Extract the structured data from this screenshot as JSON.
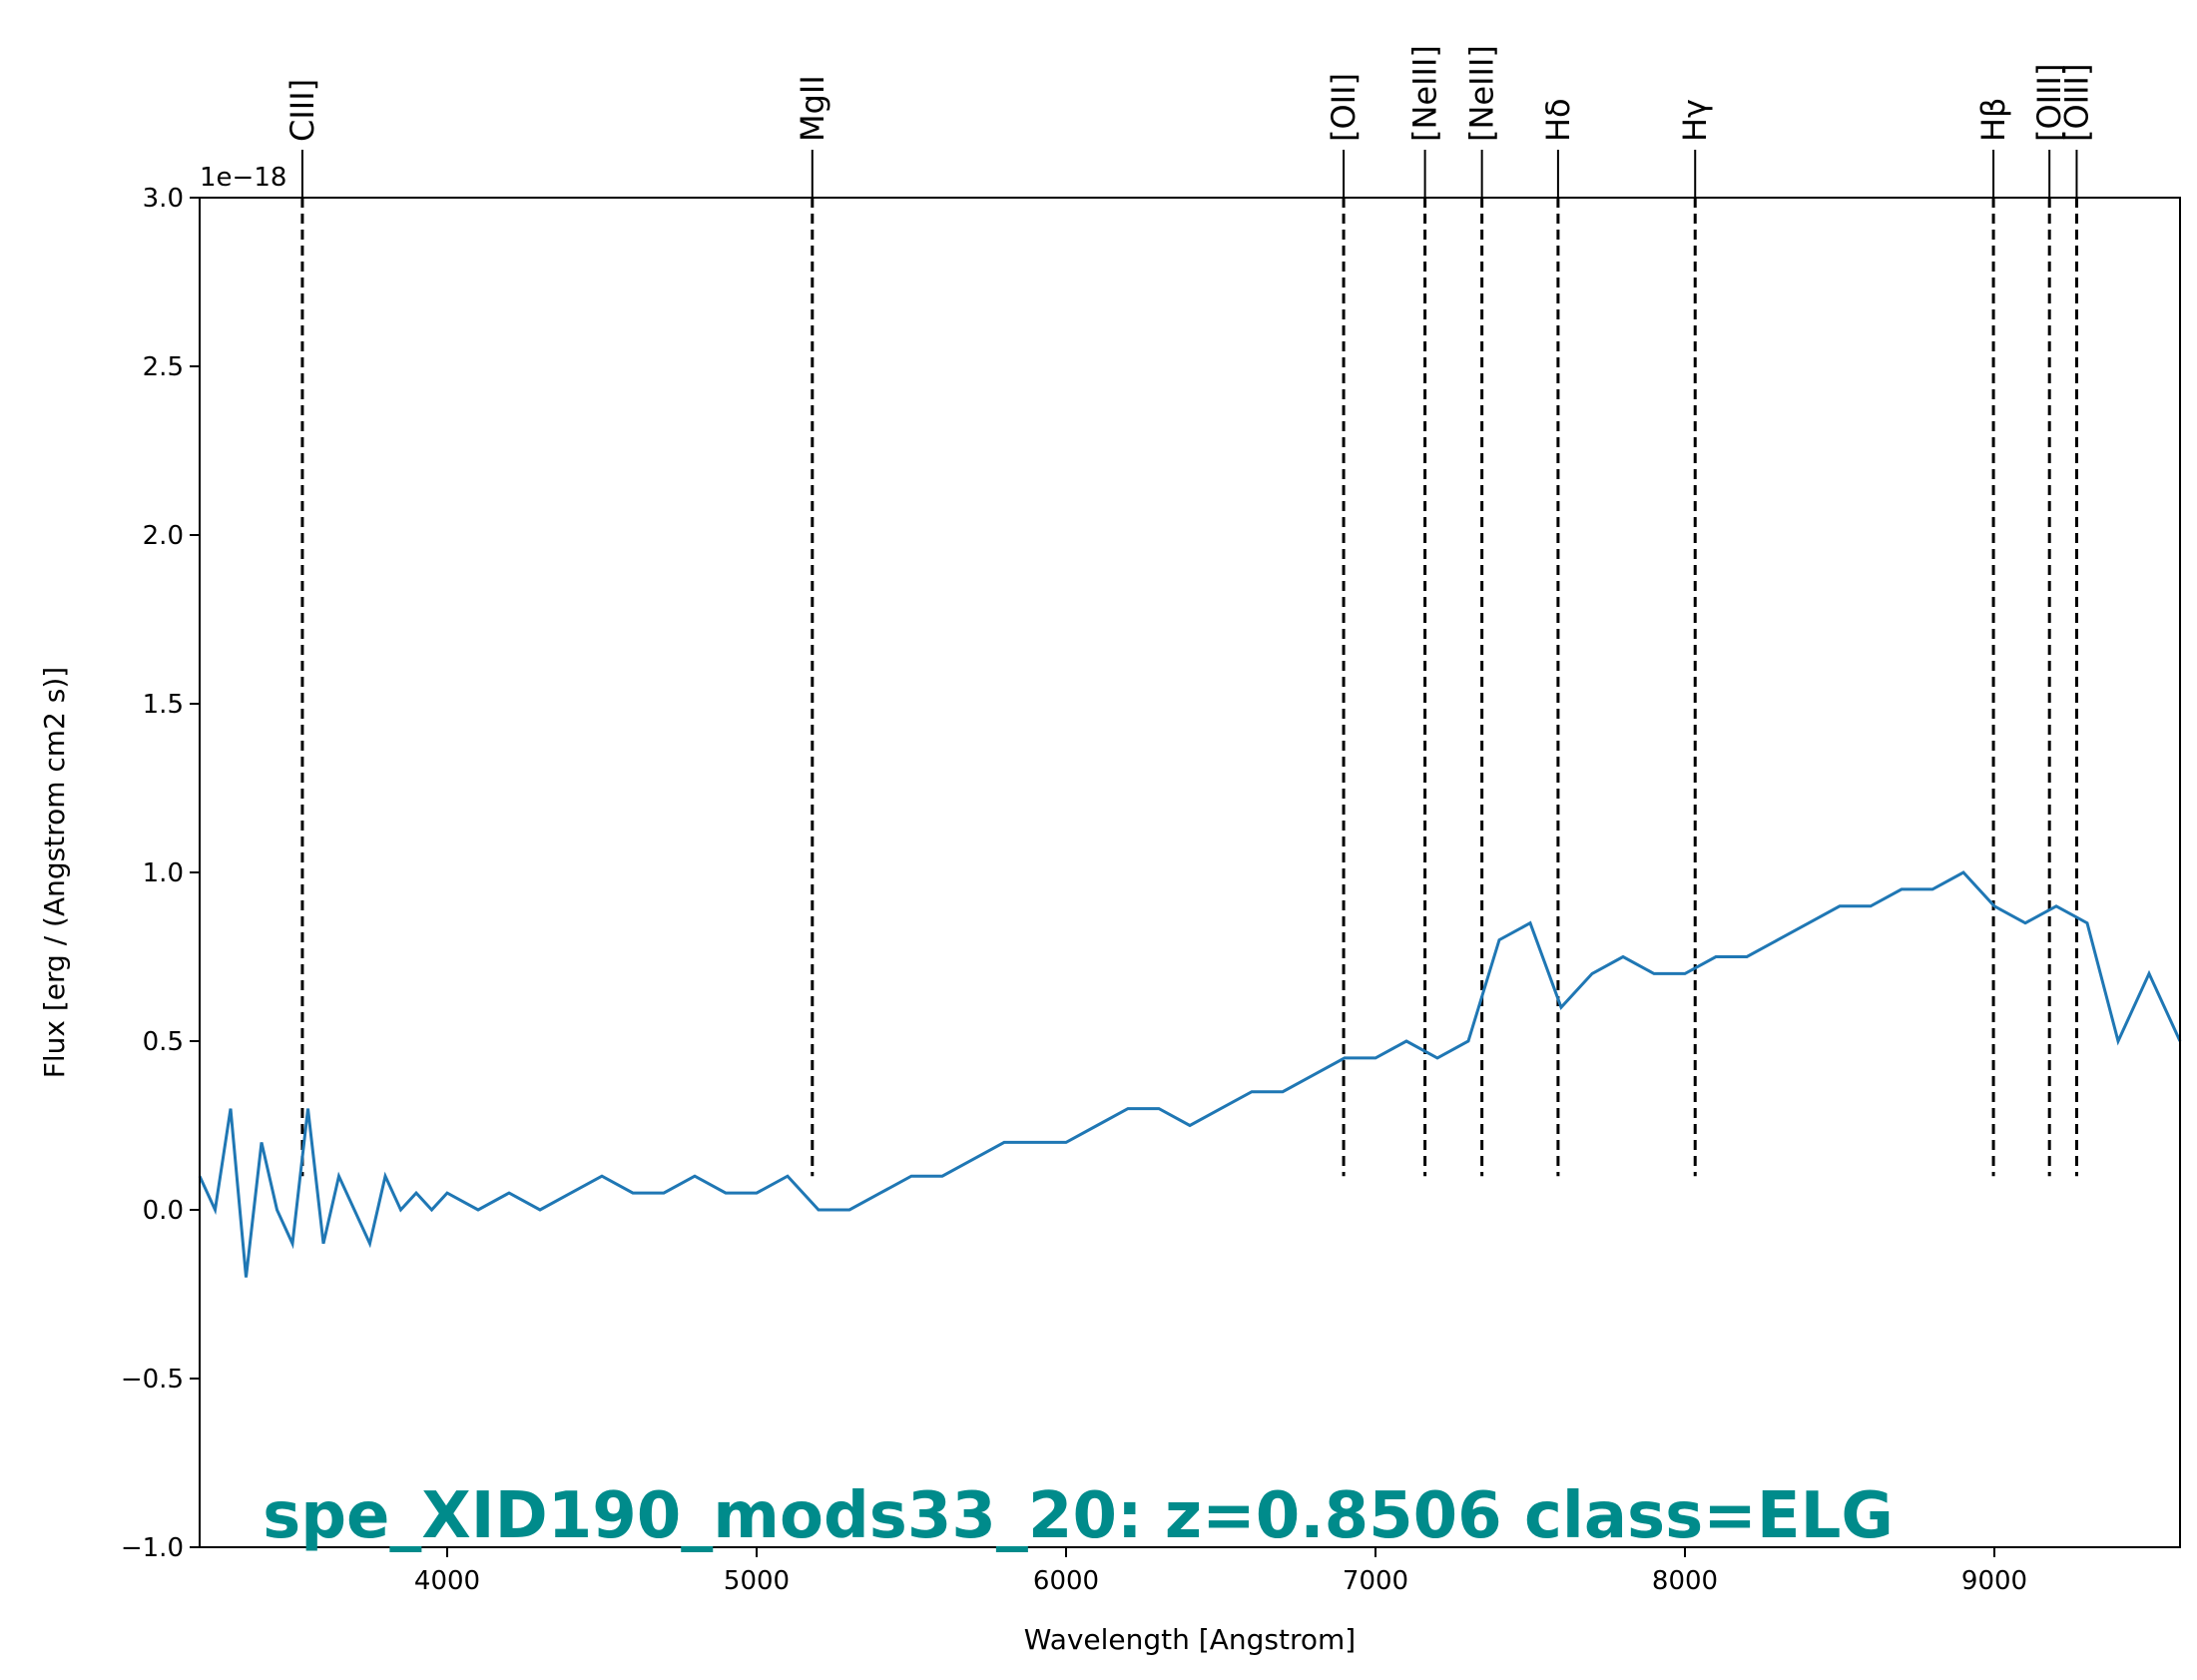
{
  "chart_data": {
    "type": "line",
    "xlabel": "Wavelength [Angstrom]",
    "ylabel": "Flux [erg / (Angstrom cm2 s)]",
    "y_offset_text": "1e−18",
    "xlim": [
      3200,
      9600
    ],
    "ylim": [
      -1.0,
      3.0
    ],
    "x_ticks": [
      4000,
      5000,
      6000,
      7000,
      8000,
      9000
    ],
    "x_tick_labels": [
      "4000",
      "5000",
      "6000",
      "7000",
      "8000",
      "9000"
    ],
    "y_ticks": [
      -1.0,
      -0.5,
      0.0,
      0.5,
      1.0,
      1.5,
      2.0,
      2.5,
      3.0
    ],
    "y_tick_labels": [
      "−1.0",
      "−0.5",
      "0.0",
      "0.5",
      "1.0",
      "1.5",
      "2.0",
      "2.5",
      "3.0"
    ],
    "grid": false,
    "series_color": "#1f77b4",
    "annotation": {
      "text": "spe_XID190_mods33_20: z=0.8506 class=ELG",
      "color": "#008b8b"
    },
    "emission_lines": [
      {
        "label": "CIII]",
        "wavelength": 3532
      },
      {
        "label": "MgII",
        "wavelength": 5180
      },
      {
        "label": "[OII]",
        "wavelength": 6897
      },
      {
        "label": "[NeIII]",
        "wavelength": 7160
      },
      {
        "label": "[NeIII]",
        "wavelength": 7344
      },
      {
        "label": "Hδ",
        "wavelength": 7590
      },
      {
        "label": "Hγ",
        "wavelength": 8033
      },
      {
        "label": "Hβ",
        "wavelength": 8997
      },
      {
        "label": "[OIII]",
        "wavelength": 9178
      },
      {
        "label": "[OIII]",
        "wavelength": 9266
      }
    ],
    "series": [
      {
        "x": [
          3200,
          3250,
          3300,
          3350,
          3400,
          3450,
          3500,
          3550,
          3600,
          3650,
          3700,
          3750,
          3800,
          3850,
          3900,
          3950,
          4000,
          4100,
          4200,
          4300,
          4400,
          4500,
          4600,
          4700,
          4800,
          4900,
          5000,
          5100,
          5200,
          5300,
          5400,
          5500,
          5600,
          5700,
          5800,
          5900,
          6000,
          6100,
          6200,
          6300,
          6400,
          6500,
          6600,
          6700,
          6800,
          6900,
          7000,
          7100,
          7200,
          7300,
          7400,
          7500,
          7600,
          7700,
          7800,
          7900,
          8000,
          8100,
          8200,
          8300,
          8400,
          8500,
          8600,
          8700,
          8800,
          8900,
          9000,
          9100,
          9200,
          9300,
          9400,
          9500,
          9600
        ],
        "y": [
          0.1,
          0.0,
          0.3,
          -0.2,
          0.2,
          0.0,
          -0.1,
          0.3,
          -0.1,
          0.1,
          0.0,
          -0.1,
          0.1,
          0.0,
          0.05,
          0.0,
          0.05,
          0.0,
          0.05,
          0.0,
          0.05,
          0.1,
          0.05,
          0.05,
          0.1,
          0.05,
          0.05,
          0.1,
          0.0,
          0.0,
          0.05,
          0.1,
          0.1,
          0.15,
          0.2,
          0.2,
          0.2,
          0.25,
          0.3,
          0.3,
          0.25,
          0.3,
          0.35,
          0.35,
          0.4,
          0.45,
          0.45,
          0.5,
          0.45,
          0.5,
          0.8,
          0.85,
          0.6,
          0.7,
          0.75,
          0.7,
          0.7,
          0.75,
          0.75,
          0.8,
          0.85,
          0.9,
          0.9,
          0.95,
          0.95,
          1.0,
          0.9,
          0.85,
          0.9,
          0.85,
          0.5,
          0.7,
          0.5
        ]
      }
    ]
  }
}
